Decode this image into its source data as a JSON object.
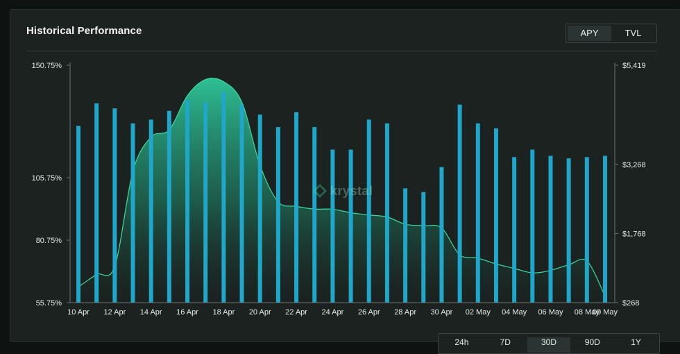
{
  "panel": {
    "title": "Historical Performance",
    "metric_tabs": [
      {
        "label": "APY",
        "active": true
      },
      {
        "label": "TVL",
        "active": false
      }
    ],
    "range_tabs": [
      {
        "label": "24h",
        "active": false
      },
      {
        "label": "7D",
        "active": false
      },
      {
        "label": "30D",
        "active": true
      },
      {
        "label": "90D",
        "active": false
      },
      {
        "label": "1Y",
        "active": false
      }
    ],
    "watermark": "krystal"
  },
  "colors": {
    "bar": "#1fa6c8",
    "area_top": "#2fc79a",
    "area_line": "#3ddc9f",
    "axis": "#6b7472"
  },
  "chart_data": {
    "type": "bar",
    "x_ticks": [
      "10 Apr",
      "12 Apr",
      "14 Apr",
      "16 Apr",
      "18 Apr",
      "20 Apr",
      "22 Apr",
      "24 Apr",
      "26 Apr",
      "28 Apr",
      "30 Apr",
      "02 May",
      "04 May",
      "06 May",
      "08 May",
      "09 May"
    ],
    "left_axis": {
      "ticks": [
        "150.75%",
        "105.75%",
        "80.75%",
        "55.75%"
      ],
      "tick_values": [
        150.75,
        105.75,
        80.75,
        55.75
      ],
      "range": [
        55.75,
        150.75
      ]
    },
    "right_axis": {
      "ticks": [
        "$5,419",
        "$3,268",
        "$1,768",
        "$268"
      ],
      "tick_values": [
        5419,
        3268,
        1768,
        268
      ],
      "range": [
        268,
        5419
      ]
    },
    "categories": [
      "10 Apr",
      "11 Apr",
      "12 Apr",
      "13 Apr",
      "14 Apr",
      "15 Apr",
      "16 Apr",
      "17 Apr",
      "18 Apr",
      "19 Apr",
      "20 Apr",
      "21 Apr",
      "22 Apr",
      "23 Apr",
      "24 Apr",
      "25 Apr",
      "26 Apr",
      "27 Apr",
      "28 Apr",
      "29 Apr",
      "30 Apr",
      "01 May",
      "02 May",
      "03 May",
      "04 May",
      "05 May",
      "06 May",
      "07 May",
      "08 May",
      "09 May"
    ],
    "series": [
      {
        "axis": "left",
        "style": "bar",
        "values": [
          126.5,
          135.5,
          133.5,
          127.5,
          129,
          132.5,
          137,
          136,
          140,
          135,
          131,
          126,
          132,
          126,
          117,
          117,
          129,
          127.5,
          101.5,
          100,
          110,
          135,
          127.5,
          125.5,
          114,
          117,
          114.5,
          113.5,
          114,
          114.5
        ]
      },
      {
        "axis": "right",
        "style": "area",
        "values": [
          606,
          877,
          1055,
          3115,
          3860,
          4019,
          4758,
          5110,
          5061,
          4617,
          3251,
          2456,
          2358,
          2298,
          2295,
          2218,
          2169,
          2126,
          1969,
          1935,
          1887,
          1306,
          1233,
          1106,
          1010,
          914,
          968,
          1089,
          1170,
          406
        ]
      }
    ],
    "grid": false
  }
}
